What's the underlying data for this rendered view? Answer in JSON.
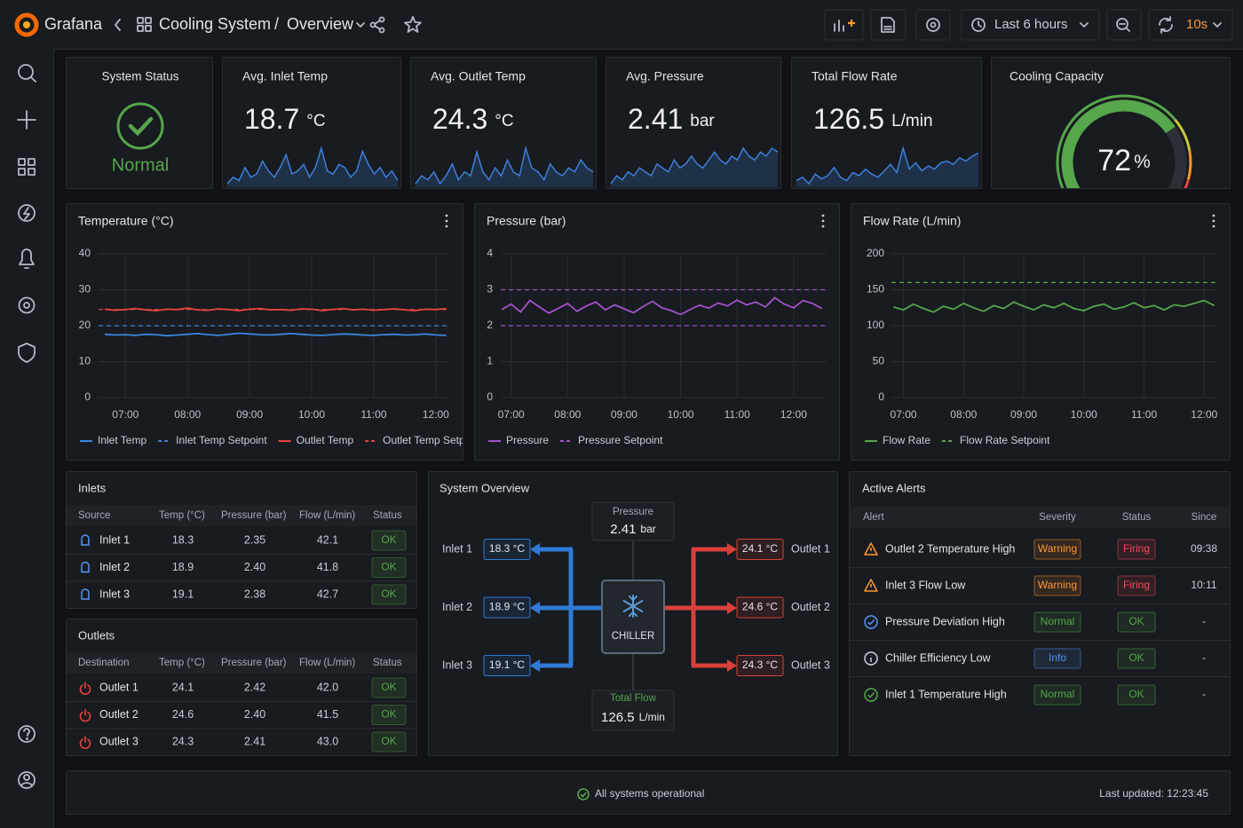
{
  "topbar": {
    "brand": "Grafana",
    "folder": "Cooling System",
    "separator": "/",
    "dashboard": "Overview",
    "time_range": "Last 6 hours",
    "refresh": "10s"
  },
  "stats": [
    {
      "title": "System Status",
      "value": "Normal",
      "color": "#56a64b"
    },
    {
      "title": "Avg. Inlet Temp",
      "value": 18.7,
      "unit": "°C",
      "spark": [
        18.4,
        18.6,
        18.5,
        18.9,
        18.6,
        18.7,
        19.1,
        18.8,
        18.6,
        18.9,
        19.3,
        18.7,
        18.8,
        19.0,
        18.6,
        18.9,
        19.5,
        18.8,
        18.7,
        19.0,
        18.9,
        18.6,
        18.8,
        19.4,
        19.0,
        18.7,
        18.9,
        18.6,
        18.8,
        18.5
      ]
    },
    {
      "title": "Avg. Outlet Temp",
      "value": 24.3,
      "unit": "°C",
      "spark": [
        24.0,
        24.2,
        24.1,
        24.3,
        24.0,
        24.2,
        24.5,
        24.1,
        24.3,
        24.2,
        24.8,
        24.3,
        24.1,
        24.4,
        24.2,
        24.6,
        24.3,
        24.2,
        24.9,
        24.4,
        24.3,
        24.1,
        24.5,
        24.3,
        24.2,
        24.4,
        24.3,
        24.6,
        24.4,
        24.3
      ]
    },
    {
      "title": "Avg. Pressure",
      "value": 2.41,
      "unit": "bar",
      "spark": [
        2.36,
        2.38,
        2.37,
        2.39,
        2.38,
        2.4,
        2.39,
        2.38,
        2.41,
        2.4,
        2.39,
        2.42,
        2.4,
        2.41,
        2.43,
        2.41,
        2.4,
        2.42,
        2.44,
        2.42,
        2.41,
        2.43,
        2.42,
        2.45,
        2.43,
        2.42,
        2.44,
        2.43,
        2.45,
        2.44
      ]
    },
    {
      "title": "Total Flow Rate",
      "value": 126.5,
      "unit": "L/min",
      "spark": [
        125.8,
        126.0,
        125.6,
        126.2,
        125.9,
        126.1,
        126.6,
        126.0,
        125.8,
        126.3,
        126.1,
        126.5,
        126.2,
        126.0,
        126.4,
        126.8,
        126.3,
        127.8,
        126.5,
        126.9,
        126.4,
        126.7,
        126.5,
        126.9,
        127.0,
        126.8,
        127.2,
        127.0,
        127.3,
        127.5
      ]
    }
  ],
  "spark_color": "#3d7fdc",
  "gauge": {
    "title": "Cooling Capacity",
    "value": 72,
    "unit": "%",
    "lim": [
      0,
      100
    ],
    "color": "#56a64b",
    "thresholds": [
      {
        "value": 0,
        "color": "#56a64b"
      },
      {
        "value": 70,
        "color": "#c8c83a"
      },
      {
        "value": 82,
        "color": "#ff9830"
      },
      {
        "value": 92,
        "color": "#e5453f"
      }
    ]
  },
  "chart_data": [
    {
      "type": "line",
      "title": "Temperature (°C)",
      "grid": true,
      "x": [
        "06:40",
        "06:50",
        "07:00",
        "07:10",
        "07:20",
        "07:30",
        "07:40",
        "07:50",
        "08:00",
        "08:10",
        "08:20",
        "08:30",
        "08:40",
        "08:50",
        "09:00",
        "09:10",
        "09:20",
        "09:30",
        "09:40",
        "09:50",
        "10:00",
        "10:10",
        "10:20",
        "10:30",
        "10:40",
        "10:50",
        "11:00",
        "11:10",
        "11:20",
        "11:30",
        "11:40",
        "11:50",
        "12:00",
        "12:10"
      ],
      "xlim": [
        "06:34",
        "12:13"
      ],
      "xticks": [
        "07:00",
        "08:00",
        "09:00",
        "10:00",
        "11:00",
        "12:00"
      ],
      "ylim": [
        0,
        40
      ],
      "yticks": [
        0,
        10,
        20,
        30,
        40
      ],
      "series": [
        {
          "name": "Inlet Temp",
          "color": "#3d85e0",
          "style": "solid",
          "values": [
            17.6,
            17.4,
            17.5,
            17.3,
            17.6,
            17.5,
            17.2,
            17.4,
            17.6,
            17.8,
            17.5,
            17.3,
            17.6,
            17.9,
            17.7,
            17.5,
            17.4,
            17.6,
            17.8,
            17.6,
            17.4,
            17.3,
            17.5,
            17.7,
            17.6,
            17.4,
            17.3,
            17.5,
            17.6,
            17.4,
            17.5,
            17.7,
            17.4,
            17.3
          ]
        },
        {
          "name": "Inlet Temp Setpoint",
          "color": "#3d85e0",
          "style": "dashed",
          "levels": [
            20
          ]
        },
        {
          "name": "Outlet Temp",
          "color": "#e5453f",
          "style": "solid",
          "values": [
            24.6,
            24.3,
            24.5,
            24.8,
            24.4,
            24.2,
            24.6,
            24.5,
            24.9,
            24.4,
            24.3,
            24.7,
            24.5,
            24.2,
            24.6,
            24.8,
            24.4,
            24.5,
            24.3,
            24.7,
            24.6,
            24.2,
            24.5,
            24.8,
            24.4,
            24.6,
            24.3,
            24.5,
            24.7,
            24.4,
            24.2,
            24.6,
            24.5,
            24.8
          ]
        },
        {
          "name": "Outlet Temp Setpoint",
          "color": "#e5453f",
          "style": "dashed",
          "levels": [
            24.5
          ]
        }
      ]
    },
    {
      "type": "line",
      "title": "Pressure (bar)",
      "grid": true,
      "x": [
        "06:50",
        "07:00",
        "07:10",
        "07:20",
        "07:30",
        "07:40",
        "07:50",
        "08:00",
        "08:10",
        "08:20",
        "08:30",
        "08:40",
        "08:50",
        "09:00",
        "09:10",
        "09:20",
        "09:30",
        "09:40",
        "09:50",
        "10:00",
        "10:10",
        "10:20",
        "10:30",
        "10:40",
        "10:50",
        "11:00",
        "11:10",
        "11:20",
        "11:30",
        "11:40",
        "11:50",
        "12:00",
        "12:10",
        "12:20",
        "12:30"
      ],
      "xlim": [
        "06:49",
        "12:35"
      ],
      "xticks": [
        "07:00",
        "08:00",
        "09:00",
        "10:00",
        "11:00",
        "12:00"
      ],
      "ylim": [
        0,
        4
      ],
      "yticks": [
        0,
        1,
        2,
        3,
        4
      ],
      "series": [
        {
          "name": "Pressure",
          "color": "#a352cc",
          "style": "solid",
          "values": [
            2.45,
            2.6,
            2.38,
            2.7,
            2.52,
            2.35,
            2.48,
            2.62,
            2.4,
            2.55,
            2.66,
            2.44,
            2.58,
            2.47,
            2.36,
            2.53,
            2.68,
            2.5,
            2.42,
            2.31,
            2.45,
            2.57,
            2.49,
            2.63,
            2.55,
            2.71,
            2.58,
            2.66,
            2.52,
            2.78,
            2.6,
            2.5,
            2.7,
            2.62,
            2.48
          ]
        },
        {
          "name": "Pressure Setpoint",
          "color": "#a352cc",
          "style": "dashed",
          "levels": [
            2,
            3
          ]
        }
      ]
    },
    {
      "type": "line",
      "title": "Flow Rate (L/min)",
      "grid": true,
      "x": [
        "06:50",
        "07:00",
        "07:10",
        "07:20",
        "07:30",
        "07:40",
        "07:50",
        "08:00",
        "08:10",
        "08:20",
        "08:30",
        "08:40",
        "08:50",
        "09:00",
        "09:10",
        "09:20",
        "09:30",
        "09:40",
        "09:50",
        "10:00",
        "10:10",
        "10:20",
        "10:30",
        "10:40",
        "10:50",
        "11:00",
        "11:10",
        "11:20",
        "11:30",
        "11:40",
        "11:50",
        "12:00",
        "12:10"
      ],
      "xlim": [
        "06:48",
        "12:13"
      ],
      "xticks": [
        "07:00",
        "08:00",
        "09:00",
        "10:00",
        "11:00",
        "12:00"
      ],
      "ylim": [
        0,
        200
      ],
      "yticks": [
        0,
        50,
        100,
        150,
        200
      ],
      "series": [
        {
          "name": "Flow Rate",
          "color": "#56a64b",
          "style": "solid",
          "values": [
            126,
            122,
            130,
            124,
            119,
            127,
            123,
            131,
            125,
            120,
            128,
            124,
            133,
            127,
            122,
            129,
            125,
            131,
            124,
            121,
            127,
            130,
            123,
            126,
            132,
            125,
            128,
            122,
            129,
            127,
            131,
            135,
            128
          ]
        },
        {
          "name": "Flow Rate Setpoint",
          "color": "#56a64b",
          "style": "dashed",
          "levels": [
            160
          ]
        }
      ]
    }
  ],
  "inlets": {
    "title": "Inlets",
    "columns": [
      "Source",
      "Temp (°C)",
      "Pressure (bar)",
      "Flow (L/min)",
      "Status"
    ],
    "icon_color": "#5794f2",
    "status_color": "#56a64b",
    "rows": [
      [
        "Inlet 1",
        "18.3",
        "2.35",
        "42.1",
        "OK"
      ],
      [
        "Inlet 2",
        "18.9",
        "2.40",
        "41.8",
        "OK"
      ],
      [
        "Inlet 3",
        "19.1",
        "2.38",
        "42.7",
        "OK"
      ]
    ]
  },
  "outlets": {
    "title": "Outlets",
    "columns": [
      "Destination",
      "Temp (°C)",
      "Pressure (bar)",
      "Flow (L/min)",
      "Status"
    ],
    "icon_color": "#e5453f",
    "status_color": "#56a64b",
    "rows": [
      [
        "Outlet 1",
        "24.1",
        "2.42",
        "42.0",
        "OK"
      ],
      [
        "Outlet 2",
        "24.6",
        "2.40",
        "41.5",
        "OK"
      ],
      [
        "Outlet 3",
        "24.3",
        "2.41",
        "43.0",
        "OK"
      ]
    ]
  },
  "system_overview": {
    "title": "System Overview",
    "pressure": {
      "label": "Pressure",
      "value": "2.41",
      "unit": "bar"
    },
    "chiller": "CHILLER",
    "total_flow": {
      "label": "Total Flow",
      "value": "126.5",
      "unit": "L/min"
    },
    "inlets": [
      {
        "label": "Inlet 1",
        "value": "18.3 °C"
      },
      {
        "label": "Inlet 2",
        "value": "18.9 °C"
      },
      {
        "label": "Inlet 3",
        "value": "19.1 °C"
      }
    ],
    "outlets": [
      {
        "label": "Outlet 1",
        "value": "24.1 °C"
      },
      {
        "label": "Outlet 2",
        "value": "24.6 °C"
      },
      {
        "label": "Outlet 3",
        "value": "24.3 °C"
      }
    ]
  },
  "alerts": {
    "title": "Active Alerts",
    "columns": [
      "Alert",
      "Severity",
      "Status",
      "Since"
    ],
    "rows": [
      {
        "alert": "Outlet 2 Temperature High",
        "severity": "Warning",
        "severity_color": "#ff9830",
        "status": "Firing",
        "status_color": "#f2495c",
        "since": "09:38",
        "icon_color": "#ff9830"
      },
      {
        "alert": "Inlet 3 Flow Low",
        "severity": "Warning",
        "severity_color": "#ff9830",
        "status": "Firing",
        "status_color": "#f2495c",
        "since": "10:11",
        "icon_color": "#ff9830"
      },
      {
        "alert": "Pressure Deviation High",
        "severity": "Normal",
        "severity_color": "#56a64b",
        "status": "OK",
        "status_color": "#56a64b",
        "since": "-",
        "icon_color": "#5794f2"
      },
      {
        "alert": "Chiller Efficiency Low",
        "severity": "Info",
        "severity_color": "#5794f2",
        "status": "OK",
        "status_color": "#56a64b",
        "since": "-",
        "icon_color": "#ccccdc"
      },
      {
        "alert": "Inlet 1 Temperature High",
        "severity": "Normal",
        "severity_color": "#56a64b",
        "status": "OK",
        "status_color": "#56a64b",
        "since": "-",
        "icon_color": "#56a64b"
      }
    ]
  },
  "footer": {
    "status": "All systems operational",
    "updated": "Last updated: 12:23:45"
  }
}
